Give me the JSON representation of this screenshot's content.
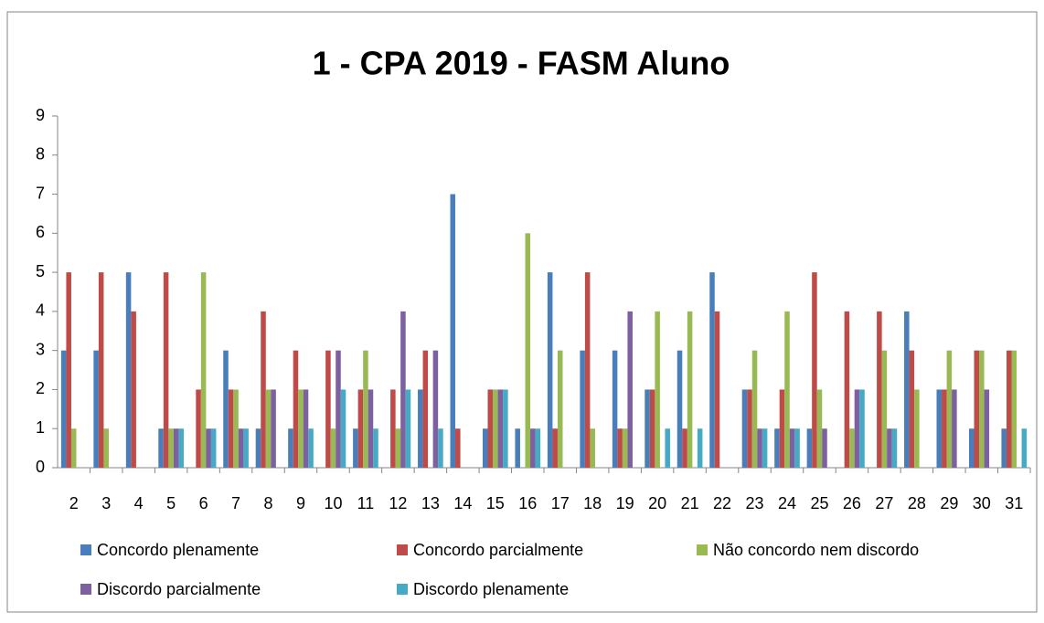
{
  "chart_data": {
    "type": "bar",
    "title": "1 - CPA 2019 - FASM Aluno",
    "categories": [
      "2",
      "3",
      "4",
      "5",
      "6",
      "7",
      "8",
      "9",
      "10",
      "11",
      "12",
      "13",
      "14",
      "15",
      "16",
      "17",
      "18",
      "19",
      "20",
      "21",
      "22",
      "23",
      "24",
      "25",
      "26",
      "27",
      "28",
      "29",
      "30",
      "31"
    ],
    "series": [
      {
        "name": "Concordo plenamente",
        "color": "#4a7ebb",
        "values": [
          3,
          3,
          5,
          1,
          0,
          3,
          1,
          1,
          0,
          1,
          0,
          2,
          7,
          1,
          1,
          5,
          3,
          3,
          2,
          3,
          5,
          2,
          1,
          1,
          0,
          0,
          4,
          2,
          1,
          1
        ]
      },
      {
        "name": "Concordo parcialmente",
        "color": "#be4b48",
        "values": [
          5,
          5,
          4,
          5,
          2,
          2,
          4,
          3,
          3,
          2,
          2,
          3,
          1,
          2,
          0,
          1,
          5,
          1,
          2,
          1,
          4,
          2,
          2,
          5,
          4,
          4,
          3,
          2,
          3,
          3
        ]
      },
      {
        "name": "Não concordo nem discordo",
        "color": "#98b954",
        "values": [
          1,
          1,
          0,
          1,
          5,
          2,
          2,
          2,
          1,
          3,
          1,
          0,
          0,
          2,
          6,
          3,
          1,
          1,
          4,
          4,
          0,
          3,
          4,
          2,
          1,
          3,
          2,
          3,
          3,
          3
        ]
      },
      {
        "name": "Discordo parcialmente",
        "color": "#7d60a0",
        "values": [
          0,
          0,
          0,
          1,
          1,
          1,
          2,
          2,
          3,
          2,
          4,
          3,
          0,
          2,
          1,
          0,
          0,
          4,
          0,
          0,
          0,
          1,
          1,
          1,
          2,
          1,
          0,
          2,
          2,
          0
        ]
      },
      {
        "name": "Discordo plenamente",
        "color": "#46aac5",
        "values": [
          0,
          0,
          0,
          1,
          1,
          1,
          0,
          1,
          2,
          1,
          2,
          1,
          0,
          2,
          1,
          0,
          0,
          0,
          1,
          1,
          0,
          1,
          1,
          0,
          2,
          1,
          0,
          0,
          0,
          1
        ]
      }
    ],
    "ylim": [
      0,
      9
    ],
    "yticks": [
      0,
      1,
      2,
      3,
      4,
      5,
      6,
      7,
      8,
      9
    ],
    "legend": "bottom"
  }
}
